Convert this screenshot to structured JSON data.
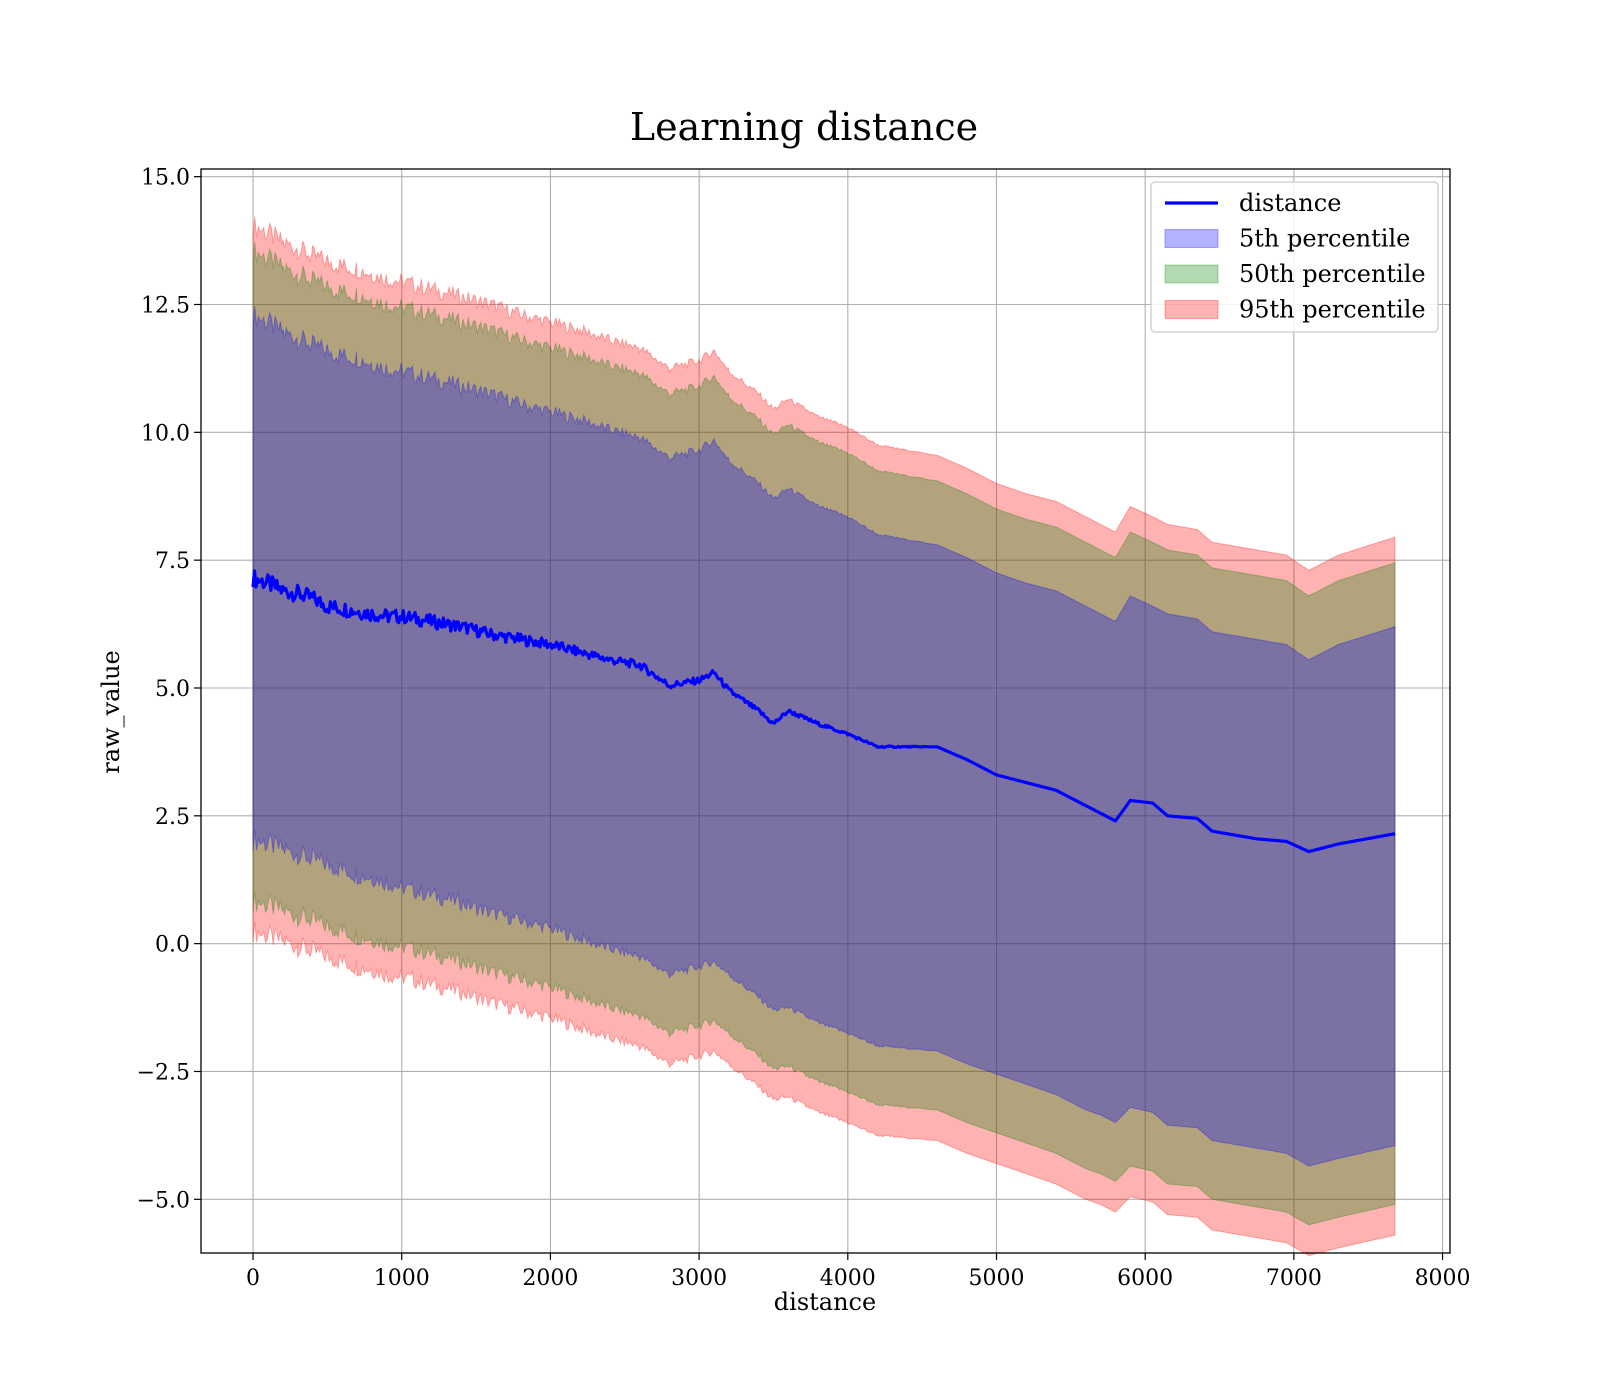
{
  "chart_data": {
    "type": "line",
    "title": "Learning distance",
    "xlabel": "distance",
    "ylabel": "raw_value",
    "xlim": [
      -350,
      8050
    ],
    "ylim": [
      -6.05,
      15.15
    ],
    "x_ticks": [
      0,
      1000,
      2000,
      3000,
      4000,
      5000,
      6000,
      7000,
      8000
    ],
    "x_tick_labels": [
      "0",
      "1000",
      "2000",
      "3000",
      "4000",
      "5000",
      "6000",
      "7000",
      "8000"
    ],
    "y_ticks": [
      -5.0,
      -2.5,
      0.0,
      2.5,
      5.0,
      7.5,
      10.0,
      12.5,
      15.0
    ],
    "y_tick_labels": [
      "−5.0",
      "−2.5",
      "0.0",
      "2.5",
      "5.0",
      "7.5",
      "10.0",
      "12.5",
      "15.0"
    ],
    "grid": true,
    "legend_position": "top-right",
    "x": [
      0,
      100,
      200,
      300,
      400,
      500,
      600,
      700,
      800,
      900,
      1000,
      1200,
      1400,
      1600,
      1800,
      2000,
      2200,
      2400,
      2600,
      2800,
      3000,
      3100,
      3200,
      3400,
      3500,
      3600,
      3800,
      4000,
      4200,
      4400,
      4600,
      4800,
      5000,
      5200,
      5400,
      5600,
      5700,
      5800,
      5900,
      6050,
      6150,
      6350,
      6450,
      6750,
      6950,
      7100,
      7300,
      7680
    ],
    "series": [
      {
        "name": "distance",
        "kind": "line",
        "color": "#0000ff",
        "values": [
          7.15,
          7.05,
          6.9,
          6.85,
          6.75,
          6.6,
          6.55,
          6.5,
          6.45,
          6.4,
          6.4,
          6.3,
          6.2,
          6.05,
          5.95,
          5.85,
          5.7,
          5.55,
          5.45,
          5.05,
          5.15,
          5.3,
          4.95,
          4.55,
          4.3,
          4.55,
          4.3,
          4.1,
          3.85,
          3.85,
          3.85,
          3.6,
          3.3,
          3.15,
          3.0,
          2.7,
          2.55,
          2.4,
          2.8,
          2.75,
          2.5,
          2.45,
          2.2,
          2.05,
          2.0,
          1.8,
          1.95,
          2.15
        ]
      },
      {
        "name": "5th percentile",
        "kind": "band",
        "color": "#0000ff",
        "lower": [
          2.05,
          1.95,
          1.85,
          1.75,
          1.65,
          1.55,
          1.45,
          1.35,
          1.3,
          1.2,
          1.1,
          0.95,
          0.8,
          0.6,
          0.45,
          0.3,
          0.1,
          -0.1,
          -0.25,
          -0.6,
          -0.45,
          -0.35,
          -0.6,
          -1.05,
          -1.3,
          -1.25,
          -1.55,
          -1.75,
          -2.0,
          -2.05,
          -2.1,
          -2.35,
          -2.55,
          -2.75,
          -2.95,
          -3.25,
          -3.35,
          -3.5,
          -3.2,
          -3.3,
          -3.55,
          -3.6,
          -3.85,
          -4.0,
          -4.1,
          -4.35,
          -4.2,
          -3.95
        ],
        "upper": [
          12.3,
          12.15,
          11.95,
          11.85,
          11.7,
          11.6,
          11.5,
          11.45,
          11.35,
          11.25,
          11.2,
          11.05,
          10.9,
          10.75,
          10.55,
          10.4,
          10.25,
          10.05,
          9.9,
          9.5,
          9.65,
          9.85,
          9.45,
          9.0,
          8.7,
          8.9,
          8.55,
          8.35,
          8.0,
          7.9,
          7.8,
          7.55,
          7.25,
          7.05,
          6.9,
          6.6,
          6.45,
          6.3,
          6.8,
          6.6,
          6.45,
          6.35,
          6.1,
          5.95,
          5.85,
          5.55,
          5.85,
          6.2
        ]
      },
      {
        "name": "50th percentile",
        "kind": "band",
        "color": "#008000",
        "lower": [
          0.85,
          0.75,
          0.65,
          0.55,
          0.45,
          0.35,
          0.25,
          0.15,
          0.1,
          0.0,
          -0.05,
          -0.2,
          -0.35,
          -0.55,
          -0.7,
          -0.85,
          -1.05,
          -1.25,
          -1.4,
          -1.75,
          -1.6,
          -1.5,
          -1.75,
          -2.2,
          -2.45,
          -2.4,
          -2.7,
          -2.9,
          -3.15,
          -3.2,
          -3.25,
          -3.5,
          -3.7,
          -3.9,
          -4.1,
          -4.4,
          -4.5,
          -4.65,
          -4.35,
          -4.45,
          -4.7,
          -4.75,
          -5.0,
          -5.15,
          -5.25,
          -5.5,
          -5.35,
          -5.1
        ],
        "upper": [
          13.55,
          13.4,
          13.2,
          13.1,
          12.95,
          12.85,
          12.75,
          12.7,
          12.6,
          12.5,
          12.45,
          12.3,
          12.15,
          12.0,
          11.8,
          11.65,
          11.5,
          11.3,
          11.15,
          10.75,
          10.9,
          11.1,
          10.7,
          10.25,
          9.95,
          10.15,
          9.8,
          9.6,
          9.25,
          9.15,
          9.05,
          8.8,
          8.5,
          8.3,
          8.15,
          7.85,
          7.7,
          7.55,
          8.05,
          7.85,
          7.7,
          7.6,
          7.35,
          7.2,
          7.1,
          6.8,
          7.1,
          7.45
        ]
      },
      {
        "name": "95th percentile",
        "kind": "band",
        "color": "#ff0000",
        "lower": [
          0.25,
          0.15,
          0.05,
          -0.05,
          -0.15,
          -0.25,
          -0.35,
          -0.45,
          -0.5,
          -0.6,
          -0.65,
          -0.8,
          -0.95,
          -1.15,
          -1.3,
          -1.45,
          -1.65,
          -1.85,
          -2.0,
          -2.35,
          -2.2,
          -2.1,
          -2.35,
          -2.8,
          -3.05,
          -3.0,
          -3.3,
          -3.5,
          -3.75,
          -3.8,
          -3.85,
          -4.1,
          -4.3,
          -4.5,
          -4.7,
          -5.0,
          -5.1,
          -5.25,
          -4.95,
          -5.05,
          -5.3,
          -5.35,
          -5.6,
          -5.75,
          -5.85,
          -6.1,
          -5.95,
          -5.7
        ],
        "upper": [
          14.05,
          13.9,
          13.7,
          13.6,
          13.45,
          13.35,
          13.25,
          13.2,
          13.1,
          13.0,
          12.95,
          12.8,
          12.65,
          12.5,
          12.3,
          12.15,
          12.0,
          11.8,
          11.65,
          11.25,
          11.4,
          11.6,
          11.2,
          10.75,
          10.45,
          10.65,
          10.3,
          10.1,
          9.75,
          9.65,
          9.55,
          9.3,
          9.0,
          8.8,
          8.65,
          8.35,
          8.2,
          8.05,
          8.55,
          8.35,
          8.2,
          8.1,
          7.85,
          7.7,
          7.6,
          7.3,
          7.6,
          7.95
        ]
      }
    ]
  }
}
